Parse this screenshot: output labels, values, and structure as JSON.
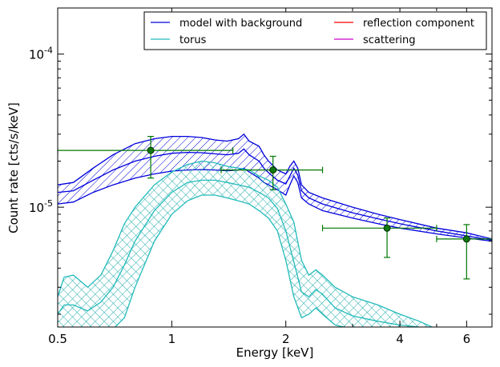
{
  "chart_data": {
    "type": "line",
    "xlabel": "Energy [keV]",
    "ylabel": "Count rate [cts/s/keV]",
    "x_scale": "log",
    "y_scale": "log",
    "xlim": [
      0.5,
      7.0
    ],
    "ylim": [
      1.65e-06,
      0.0002
    ],
    "x_ticks": [
      {
        "value": 0.5,
        "label": "0.5"
      },
      {
        "value": 1,
        "label": "1"
      },
      {
        "value": 2,
        "label": "2"
      },
      {
        "value": 4,
        "label": "4"
      },
      {
        "value": 6,
        "label": "6"
      }
    ],
    "y_ticks": [
      {
        "value": 1e-05,
        "base": "10",
        "exp": "-5"
      },
      {
        "value": 0.0001,
        "base": "10",
        "exp": "-4"
      }
    ],
    "legend": {
      "placement": "top-right",
      "columns": 2,
      "entries": [
        {
          "label": "model with background",
          "color": "#0000dd"
        },
        {
          "label": "torus",
          "color": "#22bbbb"
        },
        {
          "label": "reflection component",
          "color": "#ff0000"
        },
        {
          "label": "scattering",
          "color": "#cc00cc"
        }
      ]
    },
    "series": [
      {
        "name": "model with background",
        "color": "#0000dd",
        "band": true,
        "hatch": "diagonal",
        "x": [
          0.5,
          0.55,
          0.62,
          0.7,
          0.8,
          0.9,
          1.0,
          1.1,
          1.2,
          1.3,
          1.4,
          1.5,
          1.55,
          1.6,
          1.7,
          1.75,
          1.8,
          1.9,
          2.0,
          2.05,
          2.1,
          2.15,
          2.2,
          2.3,
          2.5,
          3.0,
          3.5,
          4.0,
          5.0,
          6.0,
          7.0
        ],
        "upper": [
          1.4e-05,
          1.45e-05,
          1.8e-05,
          2.2e-05,
          2.6e-05,
          2.8e-05,
          2.9e-05,
          2.9e-05,
          2.85e-05,
          2.75e-05,
          2.7e-05,
          2.8e-05,
          3e-05,
          2.7e-05,
          2.5e-05,
          2.2e-05,
          2e-05,
          1.75e-05,
          1.65e-05,
          1.85e-05,
          2e-05,
          1.8e-05,
          1.4e-05,
          1.25e-05,
          1.15e-05,
          1e-05,
          9e-06,
          8.3e-06,
          7.3e-06,
          6.8e-06,
          6.2e-06
        ],
        "lower": [
          1.05e-05,
          1.08e-05,
          1.25e-05,
          1.4e-05,
          1.55e-05,
          1.65e-05,
          1.72e-05,
          1.75e-05,
          1.76e-05,
          1.75e-05,
          1.73e-05,
          1.75e-05,
          1.8e-05,
          1.7e-05,
          1.55e-05,
          1.45e-05,
          1.4e-05,
          1.3e-05,
          1.2e-05,
          1.4e-05,
          1.6e-05,
          1.45e-05,
          1.15e-05,
          1.05e-05,
          9.5e-06,
          8.5e-06,
          7.8e-06,
          7.3e-06,
          6.7e-06,
          6.3e-06,
          6e-06
        ],
        "mid": [
          1.25e-05,
          1.28e-05,
          1.5e-05,
          1.75e-05,
          2e-05,
          2.15e-05,
          2.25e-05,
          2.28e-05,
          2.27e-05,
          2.23e-05,
          2.2e-05,
          2.25e-05,
          2.4e-05,
          2.2e-05,
          2e-05,
          1.8e-05,
          1.68e-05,
          1.5e-05,
          1.42e-05,
          1.6e-05,
          1.8e-05,
          1.62e-05,
          1.28e-05,
          1.15e-05,
          1.05e-05,
          9.2e-06,
          8.4e-06,
          7.8e-06,
          7e-06,
          6.5e-06,
          6.1e-06
        ]
      },
      {
        "name": "torus",
        "color": "#22bbbb",
        "band": true,
        "hatch": "cross",
        "x": [
          0.5,
          0.52,
          0.55,
          0.6,
          0.65,
          0.7,
          0.75,
          0.8,
          0.9,
          1.0,
          1.1,
          1.2,
          1.3,
          1.4,
          1.5,
          1.6,
          1.7,
          1.8,
          1.9,
          2.0,
          2.1,
          2.2,
          2.3,
          2.4,
          2.5,
          2.7,
          3.0,
          3.5,
          4.0,
          4.5,
          5.0
        ],
        "upper": [
          2.6e-06,
          3.5e-06,
          3.6e-06,
          3e-06,
          3.6e-06,
          5.2e-06,
          7.8e-06,
          1e-05,
          1.4e-05,
          1.7e-05,
          1.9e-05,
          2e-05,
          1.95e-05,
          1.85e-05,
          1.8e-05,
          1.75e-05,
          1.6e-05,
          1.5e-05,
          1.35e-05,
          1.05e-05,
          8e-06,
          4.5e-06,
          3.6e-06,
          3.9e-06,
          3.6e-06,
          3e-06,
          2.6e-06,
          2.3e-06,
          2e-06,
          1.8e-06,
          1.6e-06
        ],
        "lower": [
          1.6e-06,
          1.6e-06,
          1.6e-06,
          1.6e-06,
          1.6e-06,
          1.6e-06,
          1.9e-06,
          3e-06,
          6e-06,
          9e-06,
          1.1e-05,
          1.2e-05,
          1.2e-05,
          1.15e-05,
          1.1e-05,
          1.05e-05,
          9.5e-06,
          8.5e-06,
          7e-06,
          4.5e-06,
          2.6e-06,
          1.9e-06,
          2e-06,
          2.2e-06,
          2e-06,
          1.7e-06,
          1.6e-06,
          1.6e-06,
          1.6e-06,
          1.6e-06,
          1.6e-06
        ],
        "mid": [
          2e-06,
          2.3e-06,
          2.3e-06,
          2.1e-06,
          2.4e-06,
          3e-06,
          4.2e-06,
          6e-06,
          9.5e-06,
          1.25e-05,
          1.45e-05,
          1.5e-05,
          1.5e-05,
          1.45e-05,
          1.4e-05,
          1.35e-05,
          1.25e-05,
          1.15e-05,
          9.8e-06,
          7e-06,
          4.4e-06,
          2.8e-06,
          2.6e-06,
          2.9e-06,
          2.7e-06,
          2.2e-06,
          1.95e-06,
          1.8e-06,
          1.7e-06,
          1.65e-06,
          1.6e-06
        ]
      }
    ],
    "data_points": {
      "color": "#007700",
      "points": [
        {
          "x": 0.88,
          "y": 2.35e-05,
          "xerr": [
            0.5,
            1.45
          ],
          "yerr": [
            1.55e-05,
            2.9e-05
          ]
        },
        {
          "x": 1.85,
          "y": 1.75e-05,
          "xerr": [
            1.35,
            2.5
          ],
          "yerr": [
            1.3e-05,
            2.15e-05
          ]
        },
        {
          "x": 3.7,
          "y": 7.3e-06,
          "xerr": [
            2.5,
            5.0
          ],
          "yerr": [
            4.7e-06,
            8.5e-06
          ]
        },
        {
          "x": 6.0,
          "y": 6.2e-06,
          "xerr": [
            5.0,
            7.0
          ],
          "yerr": [
            3.4e-06,
            7.7e-06
          ]
        }
      ]
    }
  }
}
